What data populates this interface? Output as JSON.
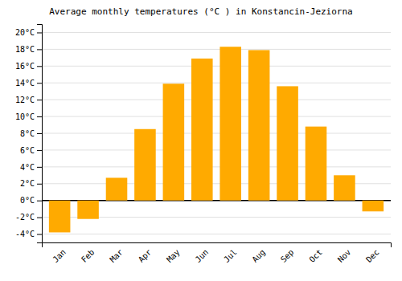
{
  "chart_data": {
    "type": "bar",
    "title": "Average monthly temperatures (°C ) in Konstancin-Jeziorna",
    "categories": [
      "Jan",
      "Feb",
      "Mar",
      "Apr",
      "May",
      "Jun",
      "Jul",
      "Aug",
      "Sep",
      "Oct",
      "Nov",
      "Dec"
    ],
    "values": [
      -3.8,
      -2.2,
      2.7,
      8.5,
      13.9,
      16.9,
      18.3,
      17.9,
      13.6,
      8.8,
      3.0,
      -1.3
    ],
    "color": "#FFAA00",
    "ylim": [
      -5,
      21
    ],
    "yticks": [
      {
        "value": -4,
        "label": "-4°C"
      },
      {
        "value": -2,
        "label": "-2°C"
      },
      {
        "value": 0,
        "label": "0°C"
      },
      {
        "value": 2,
        "label": "2°C"
      },
      {
        "value": 4,
        "label": "4°C"
      },
      {
        "value": 6,
        "label": "6°C"
      },
      {
        "value": 8,
        "label": "8°C"
      },
      {
        "value": 10,
        "label": "10°C"
      },
      {
        "value": 12,
        "label": "12°C"
      },
      {
        "value": 14,
        "label": "14°C"
      },
      {
        "value": 16,
        "label": "16°C"
      },
      {
        "value": 18,
        "label": "18°C"
      },
      {
        "value": 20,
        "label": "20°C"
      }
    ],
    "grid": true
  }
}
